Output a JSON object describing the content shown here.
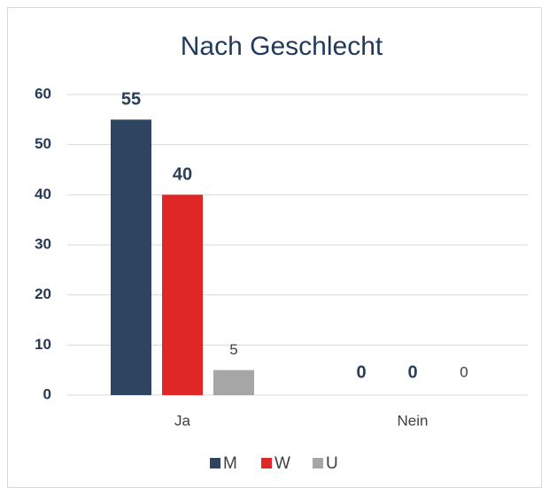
{
  "chart_data": {
    "type": "bar",
    "title": "Nach Geschlecht",
    "categories": [
      "Ja",
      "Nein"
    ],
    "series": [
      {
        "name": "M",
        "color": "#2e4461",
        "values": [
          55,
          0
        ]
      },
      {
        "name": "W",
        "color": "#e02727",
        "values": [
          40,
          0
        ]
      },
      {
        "name": "U",
        "color": "#a6a6a6",
        "values": [
          5,
          0
        ]
      }
    ],
    "ylim": [
      0,
      60
    ],
    "yticks": [
      0,
      10,
      20,
      30,
      40,
      50,
      60
    ],
    "grid": true,
    "legend": "bottom"
  }
}
